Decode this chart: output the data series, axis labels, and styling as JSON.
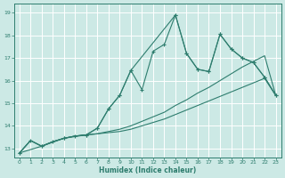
{
  "xlabel": "Humidex (Indice chaleur)",
  "background_color": "#cce9e5",
  "grid_color": "#ffffff",
  "line_color": "#2e7d6e",
  "xlim": [
    -0.5,
    23.5
  ],
  "ylim": [
    12.6,
    19.4
  ],
  "xticks": [
    0,
    1,
    2,
    3,
    4,
    5,
    6,
    7,
    8,
    9,
    10,
    11,
    12,
    13,
    14,
    15,
    16,
    17,
    18,
    19,
    20,
    21,
    22,
    23
  ],
  "yticks": [
    13,
    14,
    15,
    16,
    17,
    18,
    19
  ],
  "series": [
    {
      "x": [
        0,
        1,
        2,
        3,
        4,
        5,
        6,
        7,
        8,
        9,
        10,
        11,
        12,
        13,
        14,
        15,
        16,
        17,
        18,
        19,
        20,
        21,
        22,
        23
      ],
      "y": [
        12.8,
        13.35,
        13.1,
        13.3,
        13.45,
        13.55,
        13.6,
        13.65,
        13.7,
        13.75,
        13.85,
        14.0,
        14.15,
        14.3,
        14.5,
        14.7,
        14.9,
        15.1,
        15.3,
        15.5,
        15.7,
        15.9,
        16.1,
        15.35
      ],
      "marker": false
    },
    {
      "x": [
        0,
        1,
        2,
        3,
        4,
        5,
        6,
        7,
        8,
        9,
        10,
        11,
        12,
        13,
        14,
        15,
        16,
        17,
        18,
        19,
        20,
        21,
        22,
        23
      ],
      "y": [
        12.8,
        13.35,
        13.1,
        13.3,
        13.45,
        13.55,
        13.6,
        13.65,
        13.75,
        13.85,
        14.0,
        14.2,
        14.4,
        14.6,
        14.9,
        15.15,
        15.45,
        15.7,
        16.0,
        16.3,
        16.6,
        16.85,
        17.1,
        15.35
      ],
      "marker": false
    },
    {
      "x": [
        0,
        1,
        2,
        3,
        4,
        5,
        6,
        7,
        8,
        9,
        10,
        11,
        12,
        13,
        14,
        15,
        16,
        17,
        18,
        19,
        20,
        21,
        22,
        23
      ],
      "y": [
        12.8,
        13.35,
        13.1,
        13.3,
        13.45,
        13.55,
        13.6,
        13.9,
        14.75,
        15.35,
        16.45,
        15.6,
        17.3,
        17.6,
        18.9,
        17.2,
        16.5,
        16.4,
        18.05,
        17.4,
        17.0,
        16.8,
        16.15,
        15.35
      ],
      "marker": true
    },
    {
      "x": [
        0,
        2,
        4,
        6,
        7,
        8,
        9,
        10,
        14,
        15,
        16,
        17,
        18,
        19,
        20,
        21,
        22,
        23
      ],
      "y": [
        12.8,
        13.1,
        13.45,
        13.6,
        13.9,
        14.75,
        15.35,
        16.45,
        18.9,
        17.2,
        16.5,
        16.4,
        18.05,
        17.4,
        17.0,
        16.8,
        16.15,
        15.35
      ],
      "marker": true
    }
  ]
}
